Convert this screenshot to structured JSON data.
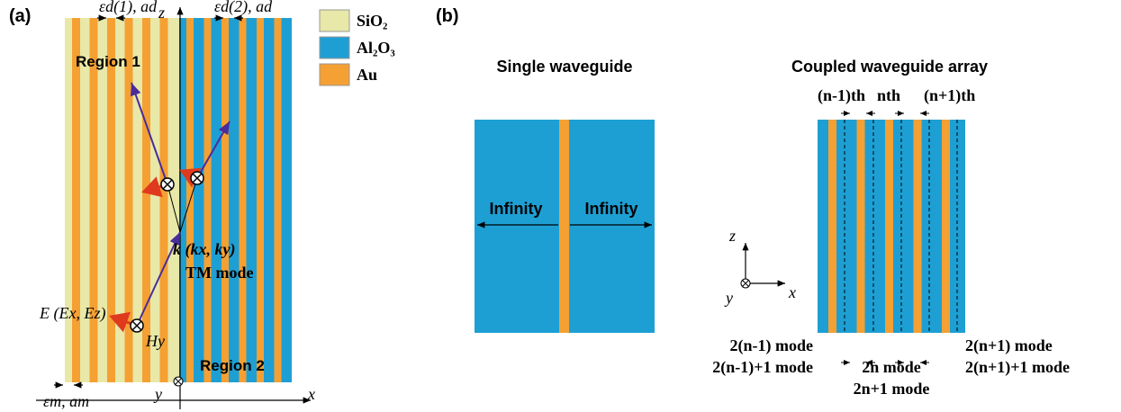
{
  "panel_a": {
    "label": "(a)",
    "axis_z": "z",
    "axis_x": "x",
    "axis_y": "y",
    "region_1": "Region 1",
    "region_2": "Region 2",
    "eps_d1": "εd(1), ad",
    "eps_d2": "εd(2), ad",
    "eps_m": "εm, am",
    "wavevector": "k (kx, ky)",
    "mode": "TM mode",
    "e_field": "E (Ex, Ez)",
    "h_field": "Hy"
  },
  "legend": [
    {
      "label": "SiO₂",
      "color": "#e8e8a8"
    },
    {
      "label": "Al₂O₃",
      "color": "#1e9fd4"
    },
    {
      "label": "Au",
      "color": "#f5a033"
    }
  ],
  "panel_b": {
    "label": "(b)",
    "single_title": "Single waveguide",
    "array_title": "Coupled waveguide array",
    "infinity_left": "Infinity",
    "infinity_right": "Infinity",
    "prev_th": "(n-1)th",
    "n_th": "nth",
    "next_th": "(n+1)th",
    "axis_z": "z",
    "axis_x": "x",
    "axis_y": "y",
    "modes": [
      "2(n-1) mode",
      "2(n-1)+1 mode",
      "2n mode",
      "2n+1 mode",
      "2(n+1) mode",
      "2(n+1)+1 mode"
    ]
  }
}
